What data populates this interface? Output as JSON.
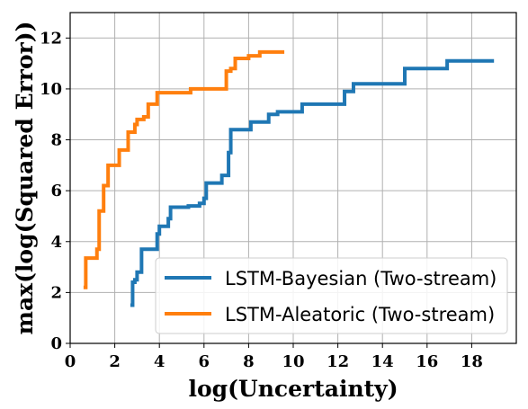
{
  "chart_data": {
    "type": "line",
    "step": true,
    "xlabel": "log(Uncertainty)",
    "ylabel": "max(log(Squared Error))",
    "xlim": [
      0,
      20
    ],
    "ylim": [
      0,
      13
    ],
    "xticks": [
      0,
      2,
      4,
      6,
      8,
      10,
      12,
      14,
      16,
      18
    ],
    "yticks": [
      0,
      2,
      4,
      6,
      8,
      10,
      12
    ],
    "grid": true,
    "legend_position": "lower-right",
    "series": [
      {
        "name": "LSTM-Bayesian (Two-stream)",
        "color": "#1f77b4",
        "points": [
          [
            2.7,
            1.5
          ],
          [
            2.8,
            2.4
          ],
          [
            2.9,
            2.5
          ],
          [
            3.0,
            2.8
          ],
          [
            3.2,
            3.7
          ],
          [
            3.9,
            4.3
          ],
          [
            4.0,
            4.6
          ],
          [
            4.4,
            4.9
          ],
          [
            4.5,
            5.35
          ],
          [
            5.3,
            5.4
          ],
          [
            5.8,
            5.5
          ],
          [
            6.0,
            5.7
          ],
          [
            6.1,
            6.3
          ],
          [
            6.8,
            6.6
          ],
          [
            7.1,
            7.5
          ],
          [
            7.2,
            8.4
          ],
          [
            8.1,
            8.7
          ],
          [
            8.9,
            9.0
          ],
          [
            9.3,
            9.1
          ],
          [
            10.4,
            9.4
          ],
          [
            12.3,
            9.9
          ],
          [
            12.7,
            10.2
          ],
          [
            15.0,
            10.8
          ],
          [
            16.9,
            11.1
          ],
          [
            19.0,
            11.1
          ]
        ]
      },
      {
        "name": "LSTM-Aleatoric (Two-stream)",
        "color": "#ff7f0e",
        "points": [
          [
            0.6,
            2.2
          ],
          [
            0.7,
            3.35
          ],
          [
            1.2,
            3.7
          ],
          [
            1.3,
            5.2
          ],
          [
            1.5,
            6.2
          ],
          [
            1.7,
            7.0
          ],
          [
            2.2,
            7.6
          ],
          [
            2.6,
            8.3
          ],
          [
            2.9,
            8.6
          ],
          [
            3.0,
            8.8
          ],
          [
            3.3,
            8.9
          ],
          [
            3.5,
            9.4
          ],
          [
            3.9,
            9.85
          ],
          [
            5.4,
            10.0
          ],
          [
            7.0,
            10.7
          ],
          [
            7.2,
            10.8
          ],
          [
            7.4,
            11.2
          ],
          [
            8.0,
            11.3
          ],
          [
            8.5,
            11.45
          ],
          [
            9.6,
            11.45
          ]
        ]
      }
    ]
  }
}
